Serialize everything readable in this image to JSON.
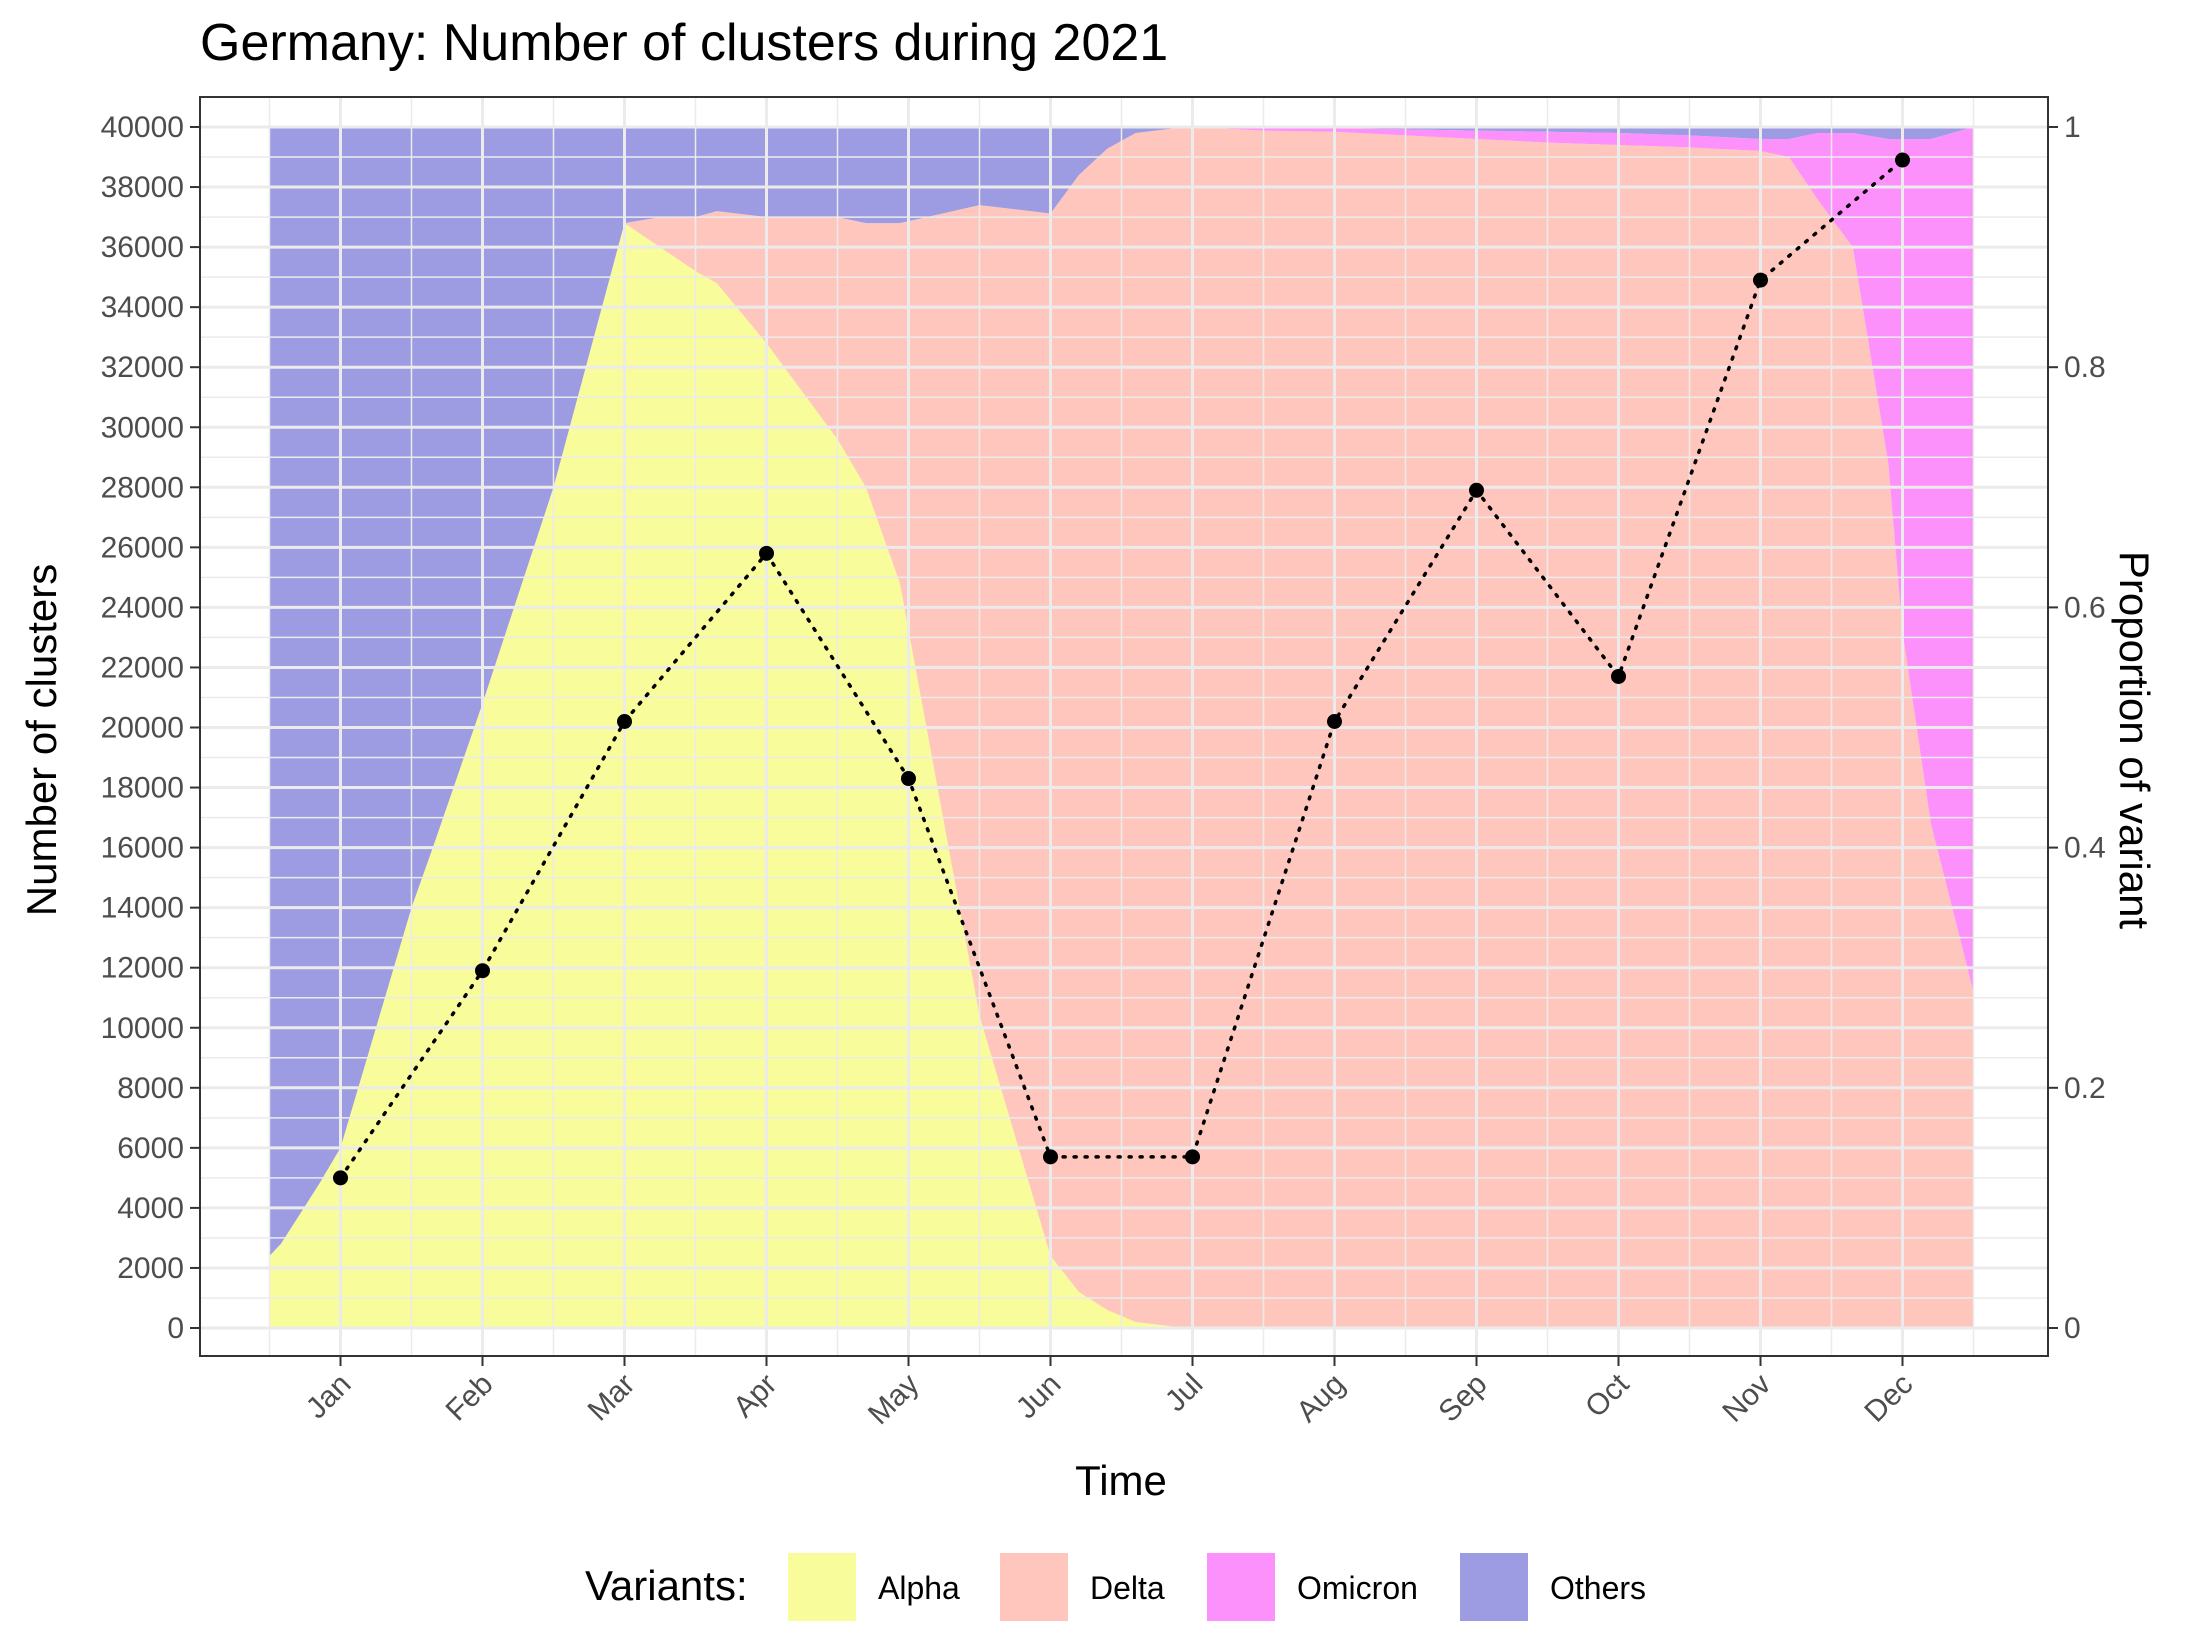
{
  "chart_data": {
    "type": "area",
    "title": "Germany: Number of clusters during 2021",
    "xlabel": "Time",
    "ylabel": "Number of clusters",
    "y2label": "Proportion of variant",
    "ylim": [
      0,
      40000
    ],
    "y2lim": [
      0,
      1
    ],
    "y_ticks": [
      "0",
      "2000",
      "4000",
      "6000",
      "8000",
      "10000",
      "12000",
      "14000",
      "16000",
      "18000",
      "20000",
      "22000",
      "24000",
      "26000",
      "28000",
      "30000",
      "32000",
      "34000",
      "36000",
      "38000",
      "40000"
    ],
    "y2_ticks": [
      "0",
      "0.2",
      "0.4",
      "0.6",
      "0.8",
      "1"
    ],
    "x_ticks": [
      "Jan",
      "Feb",
      "Mar",
      "Apr",
      "May",
      "Jun",
      "Jul",
      "Aug",
      "Sep",
      "Oct",
      "Nov",
      "Dec"
    ],
    "grid": true,
    "legend": {
      "title": "Variants:",
      "position": "bottom",
      "items": [
        {
          "label": "Alpha",
          "color": "#f8fc9a"
        },
        {
          "label": "Delta",
          "color": "#fec6bc"
        },
        {
          "label": "Omicron",
          "color": "#fc91fc"
        },
        {
          "label": "Others",
          "color": "#9d9ce2"
        }
      ]
    },
    "stack_x_months": [
      -0.5,
      -0.42,
      -0.15,
      0.0,
      0.5,
      0.65,
      1.0,
      1.5,
      2.0,
      2.25,
      2.5,
      2.65,
      3.0,
      3.5,
      3.7,
      3.94,
      4.5,
      5.0,
      5.2,
      5.4,
      5.6,
      5.95,
      6.0,
      6.5,
      7.0,
      7.5,
      8.0,
      8.5,
      9.0,
      9.5,
      10.0,
      10.2,
      10.4,
      10.65,
      10.9,
      11.0,
      11.2,
      11.5
    ],
    "series": [
      {
        "name": "Alpha",
        "color": "#f8fc9a",
        "stack_fraction": [
          0.06,
          0.07,
          0.12,
          0.15,
          0.35,
          0.4,
          0.52,
          0.7,
          0.92,
          0.9,
          0.88,
          0.87,
          0.82,
          0.74,
          0.7,
          0.62,
          0.26,
          0.06,
          0.03,
          0.015,
          0.005,
          0.0,
          0.0,
          0.0,
          0.0,
          0.0,
          0.0,
          0.0,
          0.0,
          0.0,
          0.0,
          0.0,
          0.0,
          0.0,
          0.0,
          0.0,
          0.0,
          0.0
        ]
      },
      {
        "name": "Delta",
        "color": "#fec6bc",
        "stack_fraction": [
          0.0,
          0.0,
          0.0,
          0.0,
          0.0,
          0.0,
          0.0,
          0.0,
          0.0,
          0.025,
          0.045,
          0.06,
          0.105,
          0.185,
          0.22,
          0.3,
          0.675,
          0.868,
          0.93,
          0.967,
          0.99,
          1.0,
          1.0,
          0.997,
          0.996,
          0.993,
          0.99,
          0.987,
          0.985,
          0.983,
          0.98,
          0.975,
          0.94,
          0.9,
          0.72,
          0.58,
          0.42,
          0.28
        ]
      },
      {
        "name": "Omicron",
        "color": "#fc91fc",
        "stack_fraction": [
          0.0,
          0.0,
          0.0,
          0.0,
          0.0,
          0.0,
          0.0,
          0.0,
          0.0,
          0.0,
          0.0,
          0.0,
          0.0,
          0.0,
          0.0,
          0.0,
          0.0,
          0.0,
          0.0,
          0.0,
          0.0,
          0.0,
          0.0,
          0.002,
          0.003,
          0.005,
          0.007,
          0.009,
          0.01,
          0.01,
          0.01,
          0.015,
          0.055,
          0.095,
          0.27,
          0.41,
          0.57,
          0.72
        ]
      },
      {
        "name": "Others",
        "color": "#9d9ce2",
        "stack_fraction": [
          0.94,
          0.93,
          0.88,
          0.85,
          0.65,
          0.6,
          0.48,
          0.3,
          0.08,
          0.075,
          0.075,
          0.07,
          0.075,
          0.075,
          0.08,
          0.08,
          0.065,
          0.072,
          0.04,
          0.018,
          0.005,
          0.0,
          0.0,
          0.001,
          0.001,
          0.002,
          0.003,
          0.004,
          0.005,
          0.007,
          0.01,
          0.01,
          0.005,
          0.005,
          0.01,
          0.01,
          0.01,
          0.0
        ]
      }
    ],
    "line_series": {
      "style": "dotted",
      "color": "#000000",
      "x": [
        "Jan",
        "Feb",
        "Mar",
        "Apr",
        "May",
        "Jun",
        "Jul",
        "Aug",
        "Sep",
        "Oct",
        "Nov",
        "Dec"
      ],
      "y": [
        5000,
        11900,
        20200,
        25800,
        18300,
        5700,
        5700,
        20200,
        27900,
        21700,
        34900,
        38900
      ]
    }
  }
}
